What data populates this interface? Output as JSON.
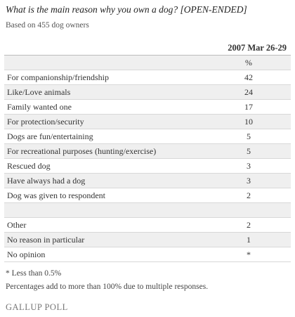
{
  "header": {
    "title": "What is the main reason why you own a dog?  [OPEN-ENDED]",
    "subtitle": "Based on 455 dog owners"
  },
  "table": {
    "column": "2007 Mar 26-29",
    "unit": "%",
    "rows": [
      [
        "For companionship/friendship",
        "42"
      ],
      [
        "Like/Love animals",
        "24"
      ],
      [
        "Family wanted one",
        "17"
      ],
      [
        "For protection/security",
        "10"
      ],
      [
        "Dogs are fun/entertaining",
        "5"
      ],
      [
        "For recreational purposes (hunting/exercise)",
        "5"
      ],
      [
        "Rescued dog",
        "3"
      ],
      [
        "Have always had a dog",
        "3"
      ],
      [
        "Dog was given to respondent",
        "2"
      ]
    ],
    "other_rows": [
      [
        "Other",
        "2"
      ],
      [
        "No reason in particular",
        "1"
      ],
      [
        "No opinion",
        "*"
      ]
    ]
  },
  "footnotes": [
    "* Less than 0.5%",
    "Percentages add to more than 100% due to multiple responses."
  ],
  "footer": {
    "source": "GALLUP POLL"
  }
}
